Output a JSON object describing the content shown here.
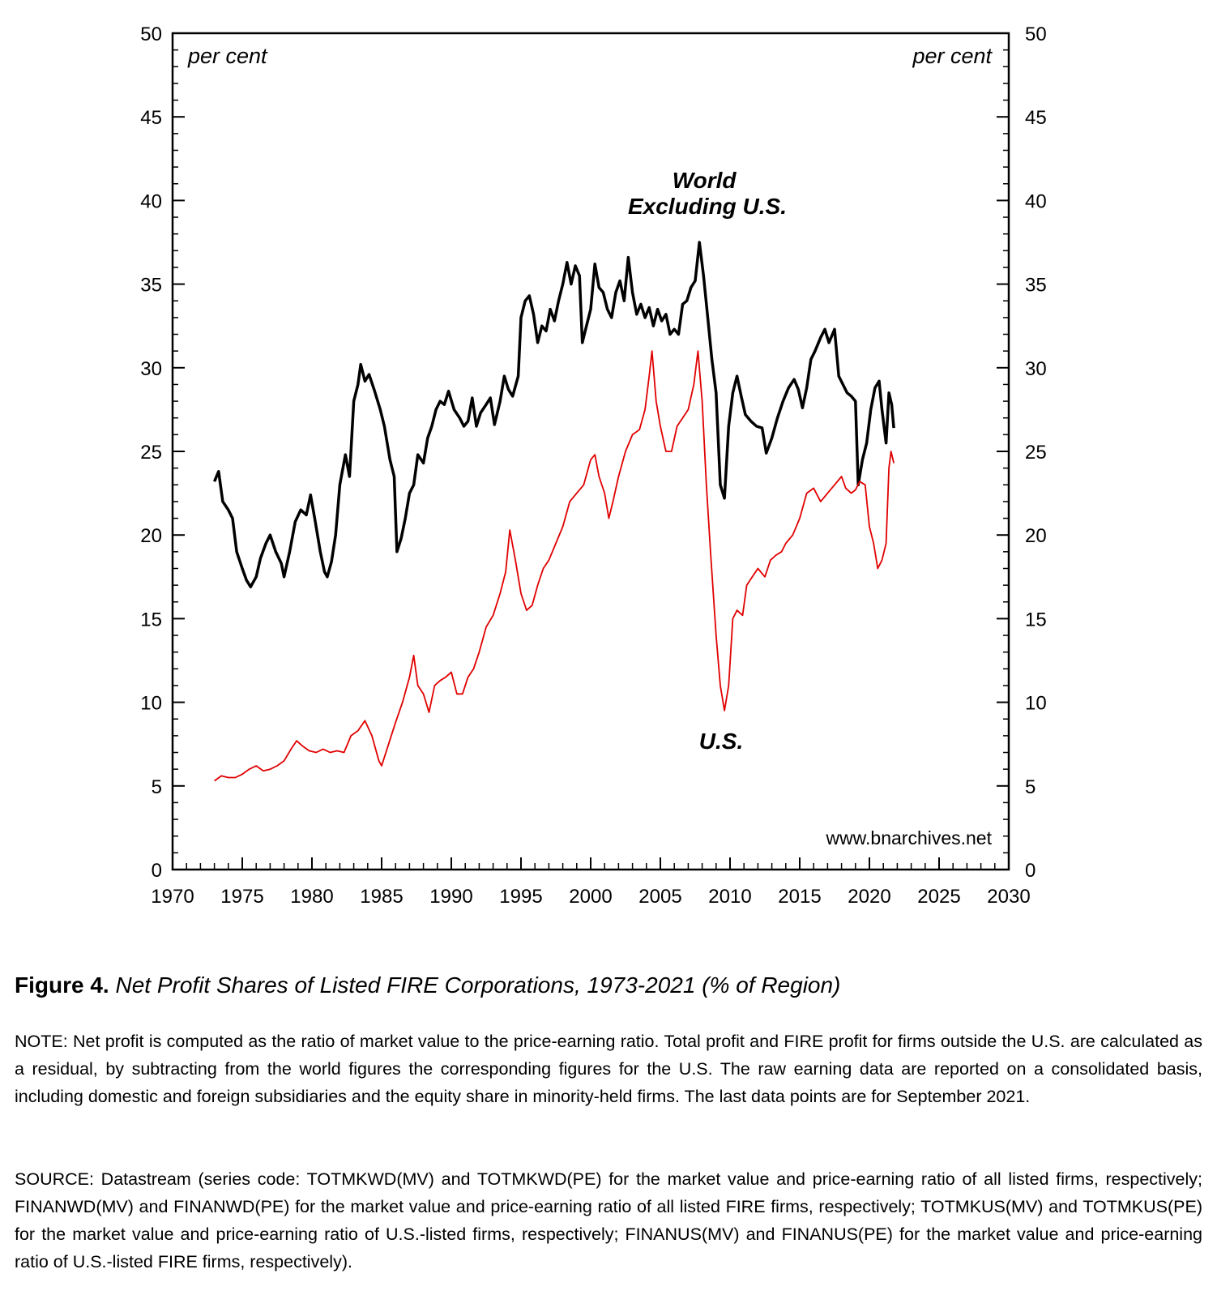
{
  "chart_data": {
    "type": "line",
    "x_range": [
      1970,
      2030
    ],
    "y_range": [
      0,
      50
    ],
    "x_ticks": [
      1970,
      1975,
      1980,
      1985,
      1990,
      1995,
      2000,
      2005,
      2010,
      2015,
      2020,
      2025,
      2030
    ],
    "y_ticks": [
      0,
      5,
      10,
      15,
      20,
      25,
      30,
      35,
      40,
      45,
      50
    ],
    "y_unit_left": "per cent",
    "y_unit_right": "per cent",
    "watermark": "www.bnarchives.net",
    "series": [
      {
        "name": "World Excluding U.S.",
        "label_lines": [
          "World",
          "Excluding U.S."
        ],
        "color": "#000000",
        "points": [
          [
            1973.0,
            23.2
          ],
          [
            1973.3,
            23.8
          ],
          [
            1973.6,
            22.0
          ],
          [
            1974.0,
            21.5
          ],
          [
            1974.3,
            21.0
          ],
          [
            1974.6,
            19.0
          ],
          [
            1975.0,
            18.0
          ],
          [
            1975.3,
            17.3
          ],
          [
            1975.6,
            16.9
          ],
          [
            1976.0,
            17.5
          ],
          [
            1976.3,
            18.6
          ],
          [
            1976.7,
            19.5
          ],
          [
            1977.0,
            20.0
          ],
          [
            1977.4,
            19.0
          ],
          [
            1977.8,
            18.3
          ],
          [
            1978.0,
            17.5
          ],
          [
            1978.4,
            19.0
          ],
          [
            1978.8,
            20.8
          ],
          [
            1979.2,
            21.5
          ],
          [
            1979.6,
            21.2
          ],
          [
            1979.9,
            22.4
          ],
          [
            1980.2,
            21.0
          ],
          [
            1980.6,
            19.0
          ],
          [
            1980.9,
            17.8
          ],
          [
            1981.1,
            17.5
          ],
          [
            1981.4,
            18.4
          ],
          [
            1981.7,
            20.0
          ],
          [
            1982.0,
            23.0
          ],
          [
            1982.4,
            24.8
          ],
          [
            1982.7,
            23.5
          ],
          [
            1983.0,
            28.0
          ],
          [
            1983.3,
            29.0
          ],
          [
            1983.5,
            30.2
          ],
          [
            1983.8,
            29.2
          ],
          [
            1984.1,
            29.6
          ],
          [
            1984.5,
            28.6
          ],
          [
            1984.9,
            27.5
          ],
          [
            1985.2,
            26.5
          ],
          [
            1985.6,
            24.5
          ],
          [
            1985.9,
            23.5
          ],
          [
            1986.1,
            19.0
          ],
          [
            1986.4,
            19.8
          ],
          [
            1986.7,
            21.0
          ],
          [
            1987.0,
            22.5
          ],
          [
            1987.3,
            23.0
          ],
          [
            1987.6,
            24.8
          ],
          [
            1988.0,
            24.3
          ],
          [
            1988.3,
            25.8
          ],
          [
            1988.6,
            26.5
          ],
          [
            1988.9,
            27.5
          ],
          [
            1989.2,
            28.0
          ],
          [
            1989.5,
            27.8
          ],
          [
            1989.8,
            28.6
          ],
          [
            1990.2,
            27.5
          ],
          [
            1990.6,
            27.0
          ],
          [
            1990.9,
            26.5
          ],
          [
            1991.2,
            26.8
          ],
          [
            1991.5,
            28.2
          ],
          [
            1991.8,
            26.5
          ],
          [
            1992.1,
            27.3
          ],
          [
            1992.5,
            27.8
          ],
          [
            1992.8,
            28.2
          ],
          [
            1993.1,
            26.6
          ],
          [
            1993.5,
            28.0
          ],
          [
            1993.8,
            29.5
          ],
          [
            1994.1,
            28.7
          ],
          [
            1994.4,
            28.3
          ],
          [
            1994.8,
            29.5
          ],
          [
            1995.0,
            33.0
          ],
          [
            1995.3,
            34.0
          ],
          [
            1995.6,
            34.3
          ],
          [
            1995.9,
            33.2
          ],
          [
            1996.2,
            31.5
          ],
          [
            1996.5,
            32.5
          ],
          [
            1996.8,
            32.2
          ],
          [
            1997.1,
            33.5
          ],
          [
            1997.4,
            32.8
          ],
          [
            1997.7,
            34.0
          ],
          [
            1998.0,
            35.0
          ],
          [
            1998.3,
            36.3
          ],
          [
            1998.6,
            35.0
          ],
          [
            1998.9,
            36.1
          ],
          [
            1999.2,
            35.5
          ],
          [
            1999.4,
            31.5
          ],
          [
            1999.7,
            32.5
          ],
          [
            2000.0,
            33.5
          ],
          [
            2000.3,
            36.2
          ],
          [
            2000.6,
            34.8
          ],
          [
            2000.9,
            34.5
          ],
          [
            2001.2,
            33.5
          ],
          [
            2001.5,
            33.0
          ],
          [
            2001.8,
            34.5
          ],
          [
            2002.1,
            35.2
          ],
          [
            2002.4,
            34.0
          ],
          [
            2002.7,
            36.6
          ],
          [
            2003.0,
            34.5
          ],
          [
            2003.3,
            33.2
          ],
          [
            2003.6,
            33.8
          ],
          [
            2003.9,
            33.0
          ],
          [
            2004.2,
            33.6
          ],
          [
            2004.5,
            32.5
          ],
          [
            2004.8,
            33.5
          ],
          [
            2005.1,
            32.8
          ],
          [
            2005.4,
            33.2
          ],
          [
            2005.7,
            32.0
          ],
          [
            2006.0,
            32.3
          ],
          [
            2006.3,
            32.0
          ],
          [
            2006.6,
            33.8
          ],
          [
            2006.9,
            34.0
          ],
          [
            2007.2,
            34.8
          ],
          [
            2007.5,
            35.2
          ],
          [
            2007.8,
            37.5
          ],
          [
            2008.1,
            35.5
          ],
          [
            2008.4,
            33.0
          ],
          [
            2008.7,
            30.5
          ],
          [
            2009.0,
            28.5
          ],
          [
            2009.3,
            23.0
          ],
          [
            2009.6,
            22.2
          ],
          [
            2009.9,
            26.5
          ],
          [
            2010.2,
            28.5
          ],
          [
            2010.5,
            29.5
          ],
          [
            2010.8,
            28.3
          ],
          [
            2011.1,
            27.2
          ],
          [
            2011.5,
            26.8
          ],
          [
            2011.9,
            26.5
          ],
          [
            2012.3,
            26.4
          ],
          [
            2012.6,
            24.9
          ],
          [
            2013.0,
            25.8
          ],
          [
            2013.4,
            27.0
          ],
          [
            2013.8,
            28.0
          ],
          [
            2014.2,
            28.8
          ],
          [
            2014.6,
            29.3
          ],
          [
            2014.9,
            28.7
          ],
          [
            2015.2,
            27.6
          ],
          [
            2015.5,
            28.8
          ],
          [
            2015.8,
            30.5
          ],
          [
            2016.1,
            31.0
          ],
          [
            2016.5,
            31.8
          ],
          [
            2016.8,
            32.3
          ],
          [
            2017.1,
            31.5
          ],
          [
            2017.5,
            32.3
          ],
          [
            2017.8,
            29.5
          ],
          [
            2018.1,
            29.0
          ],
          [
            2018.4,
            28.5
          ],
          [
            2018.7,
            28.3
          ],
          [
            2019.0,
            28.0
          ],
          [
            2019.2,
            23.0
          ],
          [
            2019.5,
            24.5
          ],
          [
            2019.8,
            25.5
          ],
          [
            2020.1,
            27.5
          ],
          [
            2020.4,
            28.8
          ],
          [
            2020.7,
            29.2
          ],
          [
            2020.9,
            27.5
          ],
          [
            2021.2,
            25.5
          ],
          [
            2021.4,
            28.5
          ],
          [
            2021.6,
            27.8
          ],
          [
            2021.75,
            26.4
          ]
        ]
      },
      {
        "name": "U.S.",
        "label_lines": [
          "U.S."
        ],
        "color": "#e00000",
        "points": [
          [
            1973.0,
            5.3
          ],
          [
            1973.5,
            5.6
          ],
          [
            1974.0,
            5.5
          ],
          [
            1974.5,
            5.5
          ],
          [
            1975.0,
            5.7
          ],
          [
            1975.5,
            6.0
          ],
          [
            1976.0,
            6.2
          ],
          [
            1976.5,
            5.9
          ],
          [
            1977.0,
            6.0
          ],
          [
            1977.5,
            6.2
          ],
          [
            1978.0,
            6.5
          ],
          [
            1978.5,
            7.2
          ],
          [
            1978.9,
            7.7
          ],
          [
            1979.3,
            7.4
          ],
          [
            1979.8,
            7.1
          ],
          [
            1980.3,
            7.0
          ],
          [
            1980.8,
            7.2
          ],
          [
            1981.3,
            7.0
          ],
          [
            1981.8,
            7.1
          ],
          [
            1982.3,
            7.0
          ],
          [
            1982.8,
            8.0
          ],
          [
            1983.3,
            8.3
          ],
          [
            1983.8,
            8.9
          ],
          [
            1984.3,
            8.0
          ],
          [
            1984.8,
            6.5
          ],
          [
            1985.0,
            6.2
          ],
          [
            1985.5,
            7.5
          ],
          [
            1986.0,
            8.8
          ],
          [
            1986.5,
            10.0
          ],
          [
            1987.0,
            11.5
          ],
          [
            1987.3,
            12.8
          ],
          [
            1987.6,
            11.0
          ],
          [
            1988.0,
            10.5
          ],
          [
            1988.4,
            9.4
          ],
          [
            1988.8,
            11.0
          ],
          [
            1989.2,
            11.3
          ],
          [
            1989.6,
            11.5
          ],
          [
            1990.0,
            11.8
          ],
          [
            1990.4,
            10.5
          ],
          [
            1990.8,
            10.5
          ],
          [
            1991.2,
            11.5
          ],
          [
            1991.6,
            12.0
          ],
          [
            1992.0,
            13.0
          ],
          [
            1992.5,
            14.5
          ],
          [
            1993.0,
            15.2
          ],
          [
            1993.5,
            16.5
          ],
          [
            1993.9,
            17.8
          ],
          [
            1994.2,
            20.3
          ],
          [
            1994.6,
            18.5
          ],
          [
            1995.0,
            16.5
          ],
          [
            1995.4,
            15.5
          ],
          [
            1995.8,
            15.8
          ],
          [
            1996.2,
            17.0
          ],
          [
            1996.6,
            18.0
          ],
          [
            1997.0,
            18.5
          ],
          [
            1997.5,
            19.5
          ],
          [
            1998.0,
            20.5
          ],
          [
            1998.5,
            22.0
          ],
          [
            1999.0,
            22.5
          ],
          [
            1999.5,
            23.0
          ],
          [
            2000.0,
            24.5
          ],
          [
            2000.3,
            24.8
          ],
          [
            2000.6,
            23.5
          ],
          [
            2001.0,
            22.5
          ],
          [
            2001.3,
            21.0
          ],
          [
            2001.6,
            22.0
          ],
          [
            2002.0,
            23.5
          ],
          [
            2002.5,
            25.0
          ],
          [
            2003.0,
            26.0
          ],
          [
            2003.5,
            26.3
          ],
          [
            2003.9,
            27.5
          ],
          [
            2004.2,
            29.5
          ],
          [
            2004.4,
            31.0
          ],
          [
            2004.7,
            28.0
          ],
          [
            2005.0,
            26.5
          ],
          [
            2005.4,
            25.0
          ],
          [
            2005.8,
            25.0
          ],
          [
            2006.2,
            26.5
          ],
          [
            2006.6,
            27.0
          ],
          [
            2007.0,
            27.5
          ],
          [
            2007.4,
            29.0
          ],
          [
            2007.7,
            31.0
          ],
          [
            2008.0,
            28.0
          ],
          [
            2008.3,
            23.0
          ],
          [
            2008.6,
            19.0
          ],
          [
            2009.0,
            14.0
          ],
          [
            2009.3,
            11.0
          ],
          [
            2009.6,
            9.5
          ],
          [
            2009.9,
            11.0
          ],
          [
            2010.2,
            15.0
          ],
          [
            2010.5,
            15.5
          ],
          [
            2010.9,
            15.2
          ],
          [
            2011.2,
            17.0
          ],
          [
            2011.6,
            17.5
          ],
          [
            2012.0,
            18.0
          ],
          [
            2012.5,
            17.5
          ],
          [
            2012.9,
            18.5
          ],
          [
            2013.3,
            18.8
          ],
          [
            2013.7,
            19.0
          ],
          [
            2014.0,
            19.5
          ],
          [
            2014.5,
            20.0
          ],
          [
            2015.0,
            21.0
          ],
          [
            2015.5,
            22.5
          ],
          [
            2016.0,
            22.8
          ],
          [
            2016.5,
            22.0
          ],
          [
            2017.0,
            22.5
          ],
          [
            2017.5,
            23.0
          ],
          [
            2018.0,
            23.5
          ],
          [
            2018.3,
            22.8
          ],
          [
            2018.7,
            22.5
          ],
          [
            2019.0,
            22.7
          ],
          [
            2019.3,
            23.2
          ],
          [
            2019.7,
            23.0
          ],
          [
            2020.0,
            20.5
          ],
          [
            2020.3,
            19.5
          ],
          [
            2020.6,
            18.0
          ],
          [
            2020.9,
            18.5
          ],
          [
            2021.2,
            19.5
          ],
          [
            2021.4,
            24.0
          ],
          [
            2021.55,
            25.0
          ],
          [
            2021.75,
            24.3
          ]
        ]
      }
    ]
  },
  "caption": {
    "figure_number": "Figure 4.",
    "title": "Net Profit Shares of Listed FIRE Corporations, 1973-2021 (% of Region)"
  },
  "note": "NOTE: Net profit is computed as the ratio of market value to the price-earning ratio. Total profit and FIRE profit for firms outside the U.S. are calculated as a residual, by subtracting from the world figures the corresponding figures for the U.S. The raw earning data are reported on a consolidated basis, including domestic and foreign subsidiaries and the equity share in minority-held firms. The last data points are for September 2021.",
  "source": "SOURCE: Datastream (series code: TOTMKWD(MV) and TOTMKWD(PE) for the market value and price-earning ratio of all listed firms, respectively; FINANWD(MV) and FINANWD(PE) for the market value and price-earning ratio of all listed FIRE firms, respectively;  TOTMKUS(MV) and TOTMKUS(PE) for the market value and price-earning ratio of U.S.-listed firms, respectively; FINANUS(MV) and FINANUS(PE) for the market value and price-earning ratio of U.S.-listed FIRE firms, respectively)."
}
